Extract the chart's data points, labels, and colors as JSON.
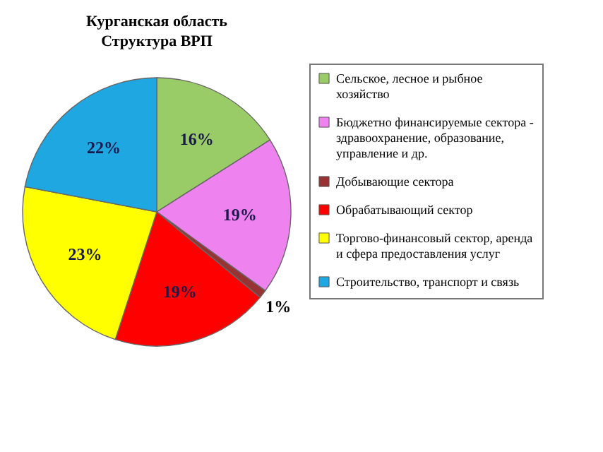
{
  "chart_data": {
    "type": "pie",
    "title": "Курганская область",
    "subtitle": "Структура ВРП",
    "categories": [
      "Сельское, лесное и рыбное хозяйство",
      "Бюджетно финансируемые сектора - здравоохранение, образование, управление и др.",
      "Добывающие сектора",
      "Обрабатывающий сектор",
      "Торгово-финансовый сектор, аренда и сфера предоставления услуг",
      "Строительство, транспорт и связь"
    ],
    "values": [
      16,
      19,
      1,
      19,
      23,
      22
    ],
    "value_labels": [
      "16%",
      "19%",
      "1%",
      "19%",
      "23%",
      "22%"
    ],
    "colors": [
      "#99cc66",
      "#ee82ee",
      "#993333",
      "#ff0000",
      "#ffff00",
      "#1ea7e1"
    ],
    "legend": "right"
  }
}
